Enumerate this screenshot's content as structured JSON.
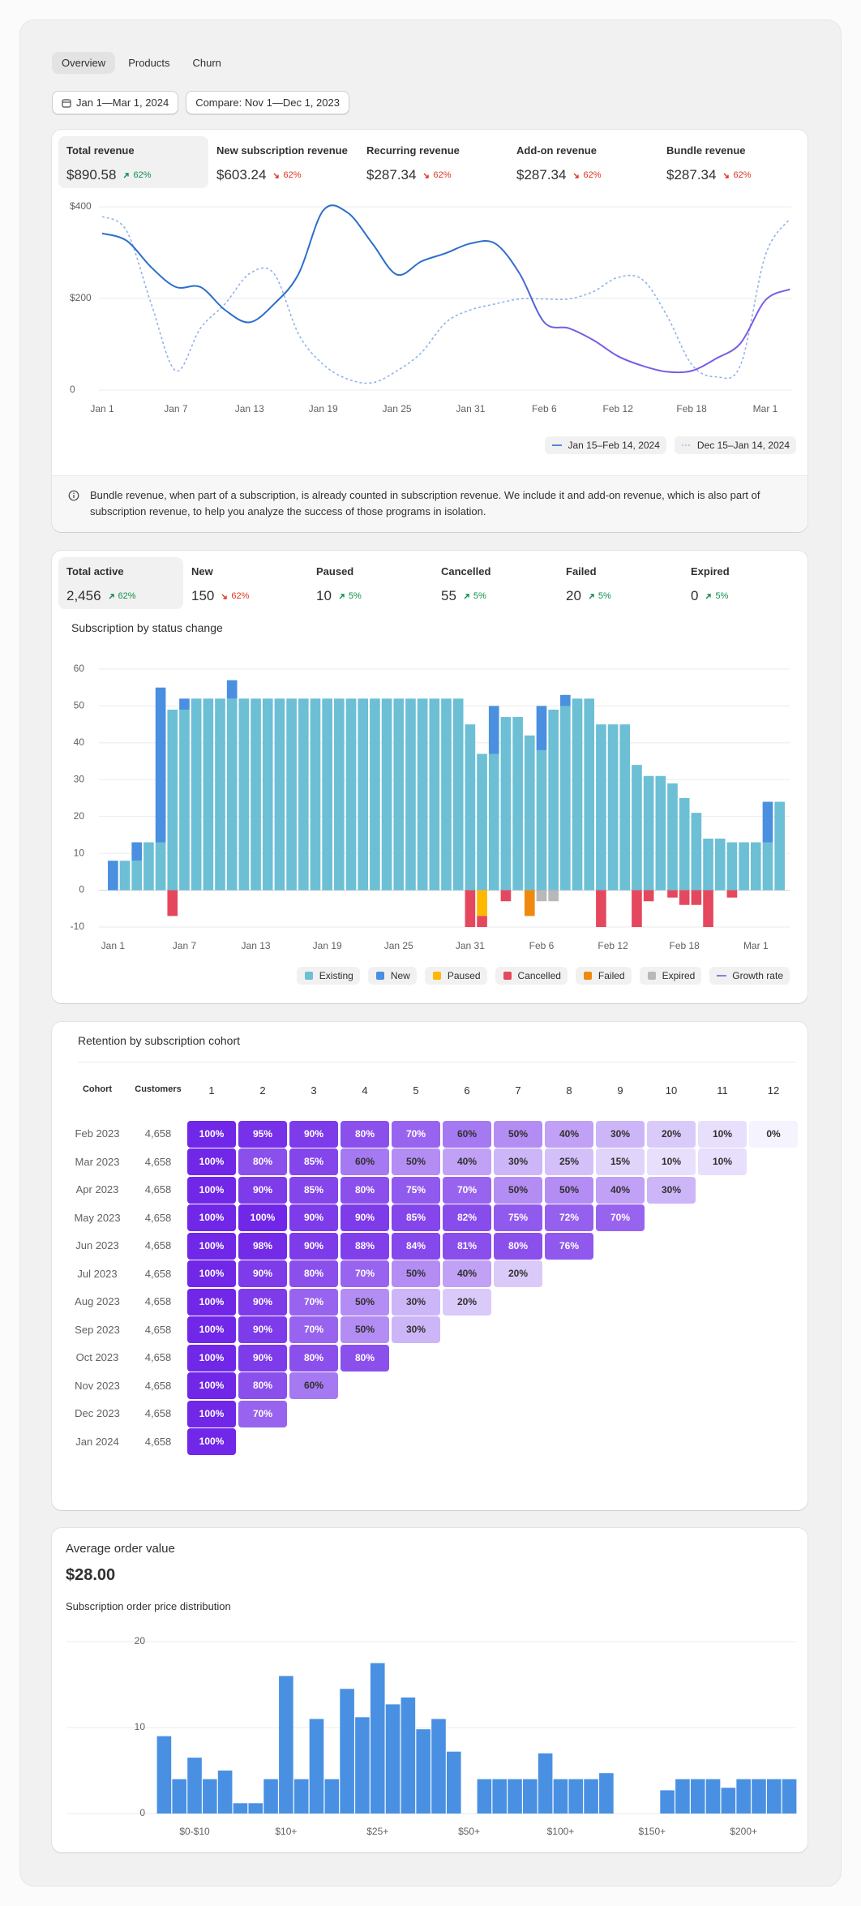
{
  "tabs": [
    "Overview",
    "Products",
    "Churn"
  ],
  "active_tab": 0,
  "date_range": "Jan 1—Mar 1, 2024",
  "compare": "Compare: Nov 1—Dec 1, 2023",
  "revenue": {
    "selected": 0,
    "items": [
      {
        "label": "Total revenue",
        "value": "$890.58",
        "change": "62%",
        "trend": "up"
      },
      {
        "label": "New subscription revenue",
        "value": "$603.24",
        "change": "62%",
        "trend": "down"
      },
      {
        "label": "Recurring revenue",
        "value": "$287.34",
        "change": "62%",
        "trend": "down"
      },
      {
        "label": "Add-on revenue",
        "value": "$287.34",
        "change": "62%",
        "trend": "down"
      },
      {
        "label": "Bundle revenue",
        "value": "$287.34",
        "change": "62%",
        "trend": "down"
      }
    ],
    "chart": {
      "type": "line",
      "categories": [
        "Jan 1",
        null,
        null,
        "Jan 7",
        null,
        null,
        "Jan 13",
        null,
        null,
        "Jan 19",
        null,
        null,
        "Jan 25",
        null,
        null,
        "Jan 31",
        null,
        null,
        "Feb 6",
        null,
        null,
        "Feb 12",
        null,
        null,
        "Feb 18",
        null,
        null,
        "Mar 1",
        null
      ],
      "ylim": [
        0,
        400
      ],
      "yticks": [
        0,
        {
          "value": 200,
          "label": "$200"
        },
        {
          "value": 400,
          "label": "$400"
        }
      ],
      "grid": true,
      "legend": "bottom-right",
      "series": [
        {
          "name": "Jan 15–Feb 14, 2024",
          "color": "#2c6ecb",
          "gradient_to": "#7b5ce6",
          "values": [
            342,
            326,
            268,
            225,
            225,
            175,
            148,
            188,
            254,
            392,
            387,
            320,
            252,
            281,
            299,
            320,
            320,
            254,
            148,
            135,
            109,
            74,
            53,
            40,
            42,
            69,
            103,
            196,
            220
          ]
        },
        {
          "name": "Dec 15–Jan 14, 2024",
          "color": "#8fb4e8",
          "dash": true,
          "values": [
            379,
            347,
            188,
            42,
            135,
            188,
            254,
            254,
            122,
            56,
            24,
            16,
            42,
            82,
            148,
            175,
            188,
            199,
            199,
            199,
            215,
            246,
            241,
            162,
            56,
            29,
            56,
            294,
            374
          ]
        }
      ]
    },
    "note": "Bundle revenue, when part of a subscription, is already counted in subscription revenue. We include it and add-on revenue, which is also part of subscription revenue, to help you analyze the success of those programs in isolation."
  },
  "subscriptions": {
    "selected": 0,
    "items": [
      {
        "label": "Total active",
        "value": "2,456",
        "change": "62%",
        "trend": "up"
      },
      {
        "label": "New",
        "value": "150",
        "change": "62%",
        "trend": "down"
      },
      {
        "label": "Paused",
        "value": "10",
        "change": "5%",
        "trend": "up"
      },
      {
        "label": "Cancelled",
        "value": "55",
        "change": "5%",
        "trend": "up"
      },
      {
        "label": "Failed",
        "value": "20",
        "change": "5%",
        "trend": "up"
      },
      {
        "label": "Expired",
        "value": "0",
        "change": "5%",
        "trend": "up"
      }
    ],
    "chart": {
      "type": "stacked-bar",
      "title": "Subscription by status change",
      "categories": [
        "Jan 1",
        null,
        null,
        null,
        null,
        null,
        "Jan 7",
        null,
        null,
        null,
        null,
        null,
        "Jan 13",
        null,
        null,
        null,
        null,
        null,
        "Jan 19",
        null,
        null,
        null,
        null,
        null,
        "Jan 25",
        null,
        null,
        null,
        null,
        null,
        "Jan 31",
        null,
        null,
        null,
        null,
        null,
        "Feb 6",
        null,
        null,
        null,
        null,
        null,
        "Feb 12",
        null,
        null,
        null,
        null,
        null,
        "Feb 18",
        null,
        null,
        null,
        null,
        null,
        "Mar 1",
        null,
        null
      ],
      "ylim": [
        -10,
        60
      ],
      "yticks": [
        -10,
        0,
        10,
        20,
        30,
        40,
        50,
        60
      ],
      "grid": true,
      "legend": "bottom-right",
      "series": [
        {
          "name": "Existing",
          "color": "#6cbfd4",
          "values": [
            0,
            8,
            8,
            13,
            13,
            49,
            49,
            52,
            52,
            52,
            52,
            52,
            52,
            52,
            52,
            52,
            52,
            52,
            52,
            52,
            52,
            52,
            52,
            52,
            52,
            52,
            52,
            52,
            52,
            52,
            45,
            37,
            37,
            47,
            47,
            42,
            38,
            49,
            50,
            52,
            52,
            45,
            45,
            45,
            34,
            31,
            31,
            29,
            25,
            21,
            14,
            14,
            13,
            13,
            13,
            13,
            24
          ]
        },
        {
          "name": "New",
          "color": "#4a8fe0",
          "values": [
            8,
            0,
            5,
            0,
            42,
            0,
            3,
            0,
            0,
            0,
            5,
            0,
            0,
            0,
            0,
            0,
            0,
            0,
            0,
            0,
            0,
            0,
            0,
            0,
            0,
            0,
            0,
            0,
            0,
            0,
            0,
            0,
            13,
            0,
            0,
            0,
            12,
            0,
            3,
            0,
            0,
            0,
            0,
            0,
            0,
            0,
            0,
            0,
            0,
            0,
            0,
            0,
            0,
            0,
            0,
            11,
            0
          ]
        },
        {
          "name": "Paused",
          "color": "#ffb800",
          "values": [
            0,
            0,
            0,
            0,
            0,
            0,
            0,
            0,
            0,
            0,
            0,
            0,
            0,
            0,
            0,
            0,
            0,
            0,
            0,
            0,
            0,
            0,
            0,
            0,
            0,
            0,
            0,
            0,
            0,
            0,
            0,
            -7,
            0,
            0,
            0,
            0,
            0,
            0,
            0,
            0,
            0,
            0,
            0,
            0,
            0,
            0,
            0,
            0,
            0,
            0,
            0,
            0,
            0,
            0,
            0,
            0,
            0
          ]
        },
        {
          "name": "Cancelled",
          "color": "#e5485e",
          "values": [
            0,
            0,
            0,
            0,
            0,
            -7,
            0,
            0,
            0,
            0,
            0,
            0,
            0,
            0,
            0,
            0,
            0,
            0,
            0,
            0,
            0,
            0,
            0,
            0,
            0,
            0,
            0,
            0,
            0,
            0,
            -10,
            -3,
            0,
            -3,
            0,
            0,
            0,
            0,
            0,
            0,
            0,
            -10,
            0,
            0,
            -10,
            -3,
            0,
            -2,
            -4,
            -4,
            -10,
            0,
            -2,
            0,
            0,
            0,
            0
          ]
        },
        {
          "name": "Failed",
          "color": "#f08a0f",
          "values": [
            0,
            0,
            0,
            0,
            0,
            0,
            0,
            0,
            0,
            0,
            0,
            0,
            0,
            0,
            0,
            0,
            0,
            0,
            0,
            0,
            0,
            0,
            0,
            0,
            0,
            0,
            0,
            0,
            0,
            0,
            0,
            0,
            0,
            0,
            0,
            -7,
            0,
            0,
            0,
            0,
            0,
            0,
            0,
            0,
            0,
            0,
            0,
            0,
            0,
            0,
            0,
            0,
            0,
            0,
            0,
            0,
            0
          ]
        },
        {
          "name": "Expired",
          "color": "#b8b8b8",
          "values": [
            0,
            0,
            0,
            0,
            0,
            0,
            0,
            0,
            0,
            0,
            0,
            0,
            0,
            0,
            0,
            0,
            0,
            0,
            0,
            0,
            0,
            0,
            0,
            0,
            0,
            0,
            0,
            0,
            0,
            0,
            0,
            0,
            0,
            0,
            0,
            0,
            -3,
            -3,
            0,
            0,
            0,
            0,
            0,
            0,
            0,
            0,
            0,
            0,
            0,
            0,
            0,
            0,
            0,
            0,
            0,
            0,
            0
          ]
        },
        {
          "name": "Growth rate",
          "color": "#6b5bd6",
          "type": "line"
        }
      ]
    }
  },
  "retention": {
    "title": "Retention by subscription cohort",
    "columns": [
      "Cohort",
      "Customers",
      "1",
      "2",
      "3",
      "4",
      "5",
      "6",
      "7",
      "8",
      "9",
      "10",
      "11",
      "12"
    ],
    "rows": [
      {
        "cohort": "Feb 2023",
        "customers": "4,658",
        "cells": [
          "100%",
          "95%",
          "90%",
          "80%",
          "70%",
          "60%",
          "50%",
          "40%",
          "30%",
          "20%",
          "10%",
          "0%"
        ]
      },
      {
        "cohort": "Mar 2023",
        "customers": "4,658",
        "cells": [
          "100%",
          "80%",
          "85%",
          "60%",
          "50%",
          "40%",
          "30%",
          "25%",
          "15%",
          "10%",
          "10%"
        ]
      },
      {
        "cohort": "Apr 2023",
        "customers": "4,658",
        "cells": [
          "100%",
          "90%",
          "85%",
          "80%",
          "75%",
          "70%",
          "50%",
          "50%",
          "40%",
          "30%"
        ]
      },
      {
        "cohort": "May 2023",
        "customers": "4,658",
        "cells": [
          "100%",
          "100%",
          "90%",
          "90%",
          "85%",
          "82%",
          "75%",
          "72%",
          "70%"
        ]
      },
      {
        "cohort": "Jun 2023",
        "customers": "4,658",
        "cells": [
          "100%",
          "98%",
          "90%",
          "88%",
          "84%",
          "81%",
          "80%",
          "76%"
        ]
      },
      {
        "cohort": "Jul 2023",
        "customers": "4,658",
        "cells": [
          "100%",
          "90%",
          "80%",
          "70%",
          "50%",
          "40%",
          "20%"
        ]
      },
      {
        "cohort": "Aug 2023",
        "customers": "4,658",
        "cells": [
          "100%",
          "90%",
          "70%",
          "50%",
          "30%",
          "20%"
        ]
      },
      {
        "cohort": "Sep 2023",
        "customers": "4,658",
        "cells": [
          "100%",
          "90%",
          "70%",
          "50%",
          "30%"
        ]
      },
      {
        "cohort": "Oct 2023",
        "customers": "4,658",
        "cells": [
          "100%",
          "90%",
          "80%",
          "80%"
        ]
      },
      {
        "cohort": "Nov 2023",
        "customers": "4,658",
        "cells": [
          "100%",
          "80%",
          "60%"
        ]
      },
      {
        "cohort": "Dec 2023",
        "customers": "4,658",
        "cells": [
          "100%",
          "70%"
        ]
      },
      {
        "cohort": "Jan 2024",
        "customers": "4,658",
        "cells": [
          "100%"
        ]
      }
    ]
  },
  "aov": {
    "title": "Average order value",
    "value": "$28.00",
    "chart": {
      "type": "bar",
      "title": "Subscription order price distribution",
      "categories": [
        null,
        null,
        "$0-$10",
        null,
        null,
        null,
        null,
        null,
        "$10+",
        null,
        null,
        null,
        null,
        null,
        "$25+",
        null,
        null,
        null,
        null,
        null,
        "$50+",
        null,
        null,
        null,
        null,
        null,
        "$100+",
        null,
        null,
        null,
        null,
        null,
        "$150+",
        null,
        null,
        null,
        null,
        null,
        "$200+",
        null,
        null,
        null
      ],
      "values": [
        9,
        4,
        6.5,
        4,
        5,
        1.2,
        1.2,
        4,
        16,
        4,
        11,
        4,
        14.5,
        11.2,
        17.5,
        12.7,
        13.5,
        9.8,
        11,
        7.2,
        0,
        4,
        4,
        4,
        4,
        7,
        4,
        4,
        4,
        4.7,
        0,
        0,
        0,
        2.7,
        4,
        4,
        4,
        3,
        4,
        4,
        4,
        4
      ],
      "color": "#4a90e2",
      "ylim": [
        0,
        20
      ],
      "yticks": [
        0,
        10,
        20
      ],
      "grid": true
    }
  }
}
